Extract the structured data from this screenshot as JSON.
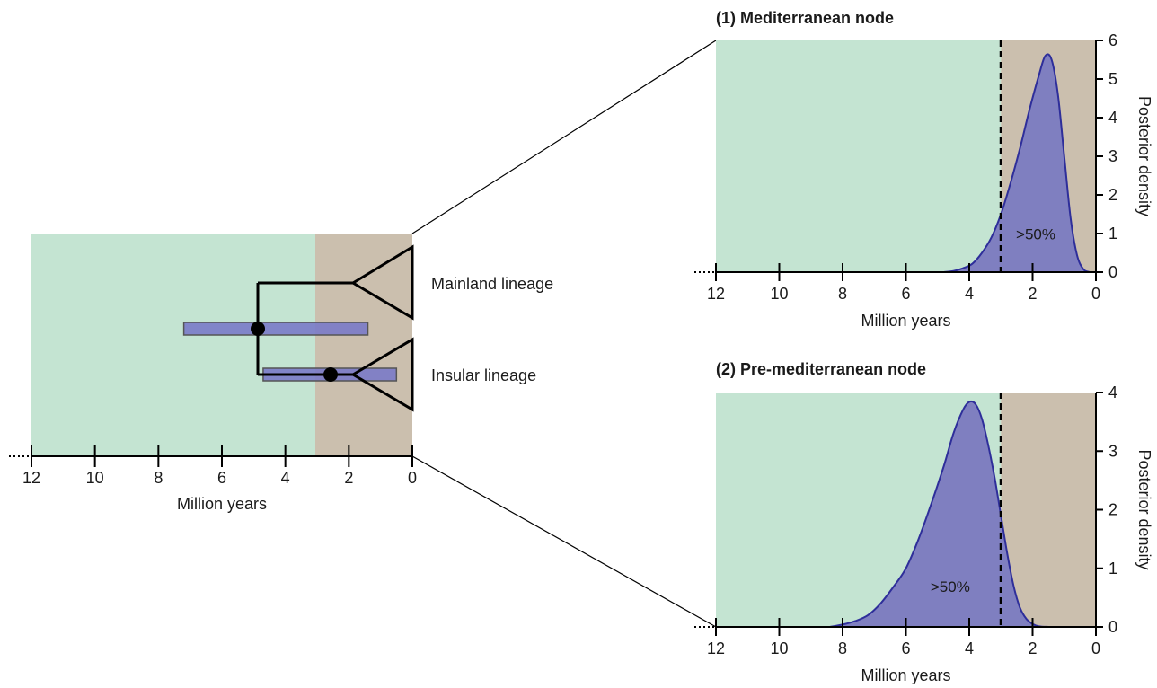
{
  "colors": {
    "mediterranean_zone": "#cbbfae",
    "pre_mediterranean_zone": "#c4e4d2",
    "density_fill": "#7f7fc0",
    "density_line": "#2e2e9a",
    "hpd_bar": "#7a7ac8",
    "axis": "#000000"
  },
  "tree_panel": {
    "xlabel": "Million years",
    "xlim": [
      12,
      0
    ],
    "ticks": [
      "12",
      "10",
      "8",
      "6",
      "4",
      "2",
      "0"
    ],
    "mediterranean_onset_ma": 3.0,
    "lineages": [
      {
        "label": "Mainland lineage"
      },
      {
        "label": "Insular lineage"
      }
    ],
    "nodes": [
      {
        "id": "pre-mediterranean",
        "age": 4.9,
        "hpd": [
          7.2,
          1.4
        ]
      },
      {
        "id": "mediterranean",
        "age": 2.6,
        "hpd": [
          4.7,
          0.5
        ]
      }
    ]
  },
  "chart_data": [
    {
      "type": "area",
      "title": "(1) Mediterranean node",
      "xlabel": "Million years",
      "ylabel": "Posterior density",
      "xlim": [
        12,
        0
      ],
      "ylim": [
        0,
        6
      ],
      "xticks": [
        "12",
        "10",
        "8",
        "6",
        "4",
        "2",
        "0"
      ],
      "yticks": [
        "0",
        "1",
        "2",
        "3",
        "4",
        "5",
        "6"
      ],
      "threshold_ma": 3.0,
      "annotation": ">50%",
      "x": [
        4.8,
        4.5,
        4.2,
        3.9,
        3.6,
        3.3,
        3.0,
        2.7,
        2.4,
        2.1,
        1.8,
        1.6,
        1.4,
        1.2,
        1.0,
        0.8,
        0.6,
        0.4,
        0.2
      ],
      "y": [
        0,
        0.03,
        0.1,
        0.22,
        0.5,
        0.9,
        1.5,
        2.3,
        3.2,
        4.2,
        5.1,
        5.6,
        5.5,
        4.6,
        3.0,
        1.4,
        0.45,
        0.08,
        0
      ]
    },
    {
      "type": "area",
      "title": "(2) Pre-mediterranean node",
      "xlabel": "Million years",
      "ylabel": "Posterior density",
      "xlim": [
        12,
        0
      ],
      "ylim": [
        0,
        4
      ],
      "xticks": [
        "12",
        "10",
        "8",
        "6",
        "4",
        "2",
        "0"
      ],
      "yticks": [
        "0",
        "1",
        "2",
        "3",
        "4"
      ],
      "threshold_ma": 3.0,
      "annotation": ">50%",
      "x": [
        8.4,
        8.0,
        7.6,
        7.2,
        6.8,
        6.4,
        6.0,
        5.6,
        5.2,
        4.8,
        4.5,
        4.2,
        4.0,
        3.8,
        3.6,
        3.4,
        3.2,
        3.0,
        2.8,
        2.6,
        2.4,
        2.2,
        2.0,
        1.8,
        1.5
      ],
      "y": [
        0,
        0.04,
        0.1,
        0.2,
        0.4,
        0.68,
        1.0,
        1.5,
        2.1,
        2.75,
        3.3,
        3.7,
        3.84,
        3.8,
        3.55,
        3.1,
        2.55,
        1.9,
        1.25,
        0.7,
        0.33,
        0.14,
        0.05,
        0.01,
        0
      ]
    }
  ]
}
